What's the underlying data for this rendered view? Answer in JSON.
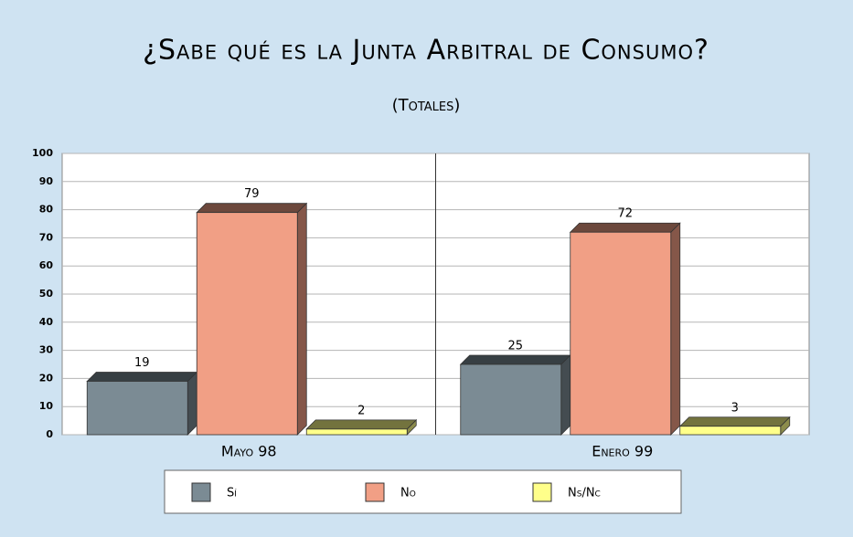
{
  "chart_data": {
    "type": "bar",
    "title": "¿Sabe qué es la Junta Arbitral de Consumo?",
    "subtitle": "(Totales)",
    "categories": [
      "Mayo 98",
      "Enero 99"
    ],
    "series": [
      {
        "name": "Sí",
        "color": "#7b8b94",
        "values": [
          19,
          25
        ]
      },
      {
        "name": "No",
        "color": "#f19f85",
        "values": [
          79,
          72
        ]
      },
      {
        "name": "Ns/Nc",
        "color": "#ffff8a",
        "values": [
          2,
          3
        ]
      }
    ],
    "ylim": [
      0,
      100
    ],
    "yticks": [
      0,
      10,
      20,
      30,
      40,
      50,
      60,
      70,
      80,
      90,
      100
    ],
    "grid": true
  }
}
